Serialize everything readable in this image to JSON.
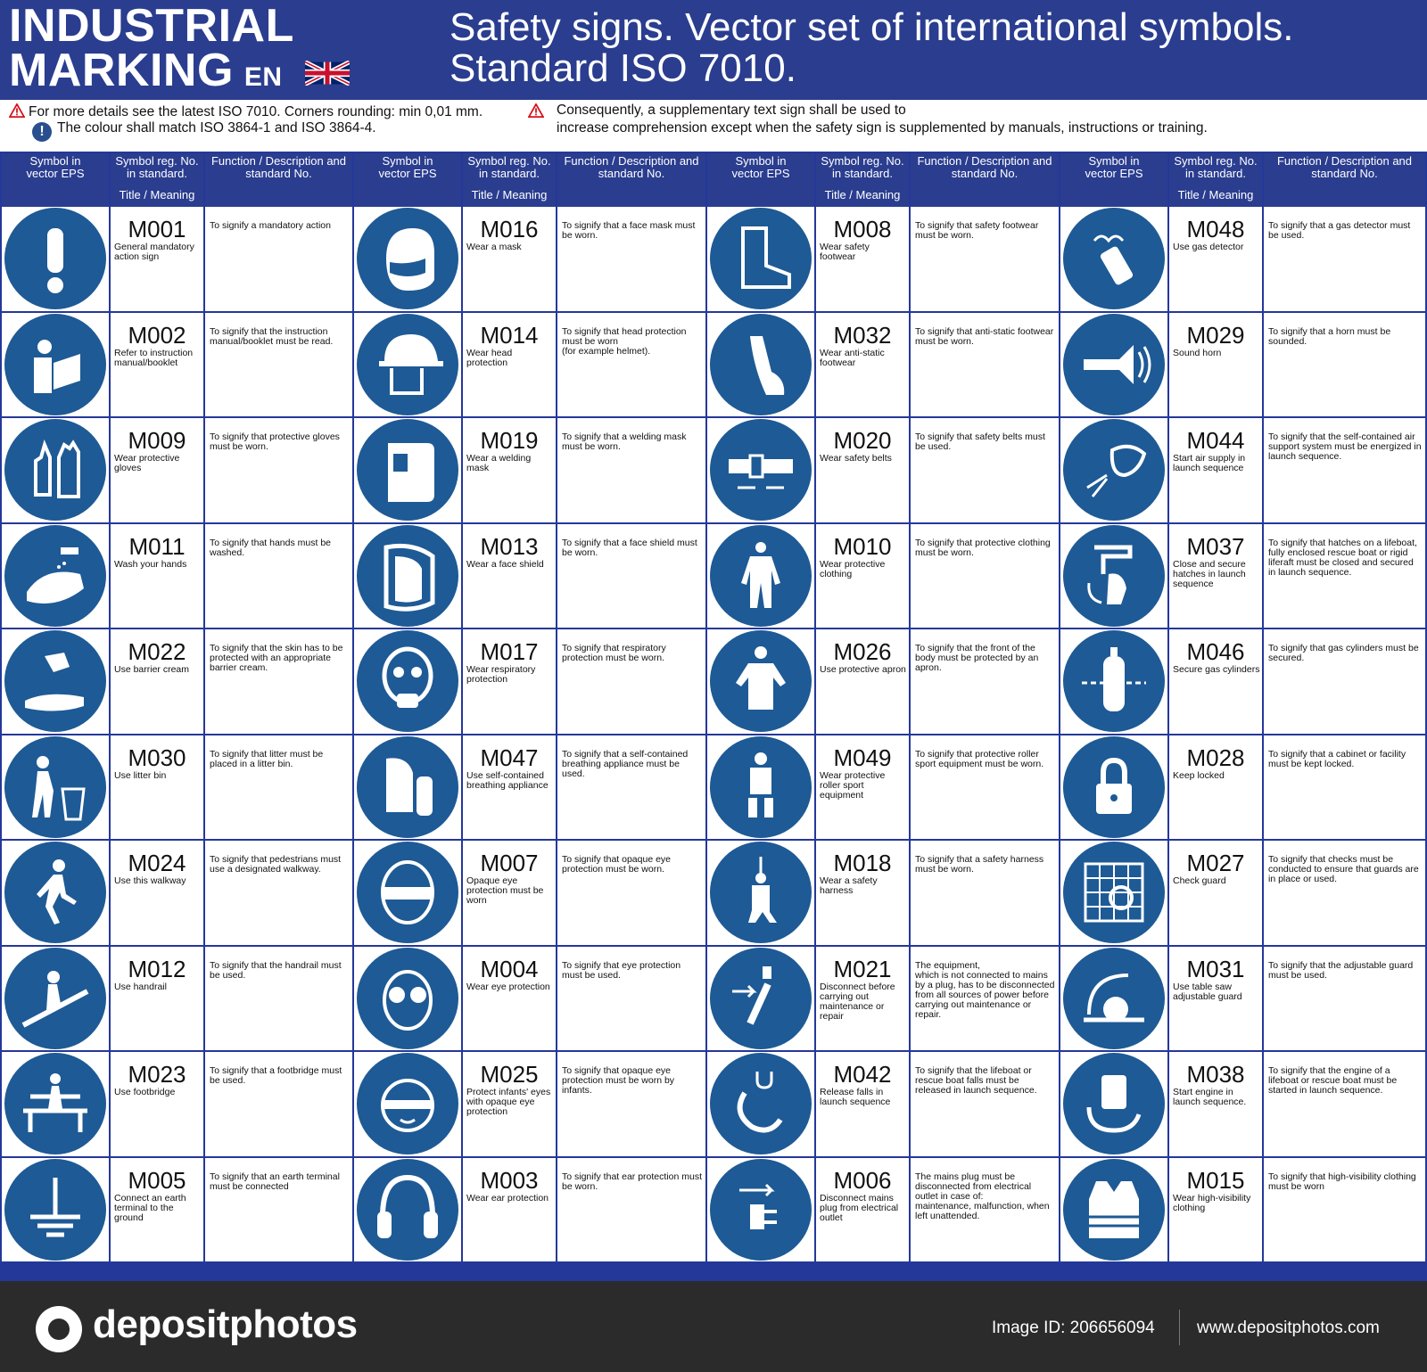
{
  "header": {
    "left_line1": "INDUSTRIAL",
    "left_line2": "MARKING",
    "lang": "EN",
    "right_line1": "Safety signs. Vector set of international symbols.",
    "right_line2": "Standard ISO 7010."
  },
  "notes": {
    "note1": "For more details see the latest ISO 7010.   Corners rounding: min 0,01 mm.",
    "note2": "The colour shall match ISO 3864-1 and ISO 3864-4.",
    "note3_line1": "Consequently, a supplementary text sign shall be used to",
    "note3_line2": "increase comprehension except when the safety sign is supplemented by manuals, instructions or training."
  },
  "columns": {
    "symbol": "Symbol in\nvector EPS",
    "regno": "Symbol reg. No.\nin standard.",
    "title": "Title / Meaning",
    "desc": "Function / Description and\nstandard No."
  },
  "colors": {
    "blue": "#1e5a95",
    "header_blue": "#2a3d8f"
  },
  "groups": [
    [
      {
        "code": "M001",
        "title": "General mandatory action sign",
        "desc": "To signify a mandatory action",
        "icon": "exclamation-icon"
      },
      {
        "code": "M002",
        "title": "Refer to instruction manual/booklet",
        "desc": "To signify that the instruction manual/booklet must be read.",
        "icon": "reading-person-icon"
      },
      {
        "code": "M009",
        "title": "Wear protective gloves",
        "desc": "To signify that protective gloves must be worn.",
        "icon": "gloves-icon"
      },
      {
        "code": "M011",
        "title": "Wash your hands",
        "desc": "To signify that hands must be washed.",
        "icon": "hand-wash-icon"
      },
      {
        "code": "M022",
        "title": "Use barrier cream",
        "desc": "To signify that the skin has to be protected with an appropriate barrier cream.",
        "icon": "barrier-cream-icon"
      },
      {
        "code": "M030",
        "title": "Use litter bin",
        "desc": "To signify that litter must be placed in a litter bin.",
        "icon": "litter-bin-icon"
      },
      {
        "code": "M024",
        "title": "Use this walkway",
        "desc": "To signify that pedestrians must use a designated walkway.",
        "icon": "walking-person-icon"
      },
      {
        "code": "M012",
        "title": "Use handrail",
        "desc": "To signify that the handrail must be used.",
        "icon": "handrail-icon"
      },
      {
        "code": "M023",
        "title": "Use footbridge",
        "desc": "To signify that a footbridge must be used.",
        "icon": "footbridge-icon"
      },
      {
        "code": "M005",
        "title": "Connect an earth terminal to the ground",
        "desc": "To signify that an earth terminal must be connected",
        "icon": "earth-terminal-icon"
      }
    ],
    [
      {
        "code": "M016",
        "title": "Wear a mask",
        "desc": "To signify that a face mask must be worn.",
        "icon": "face-mask-icon"
      },
      {
        "code": "M014",
        "title": "Wear head protection",
        "desc": "To signify that head protection must be worn\n(for example helmet).",
        "icon": "helmet-icon"
      },
      {
        "code": "M019",
        "title": "Wear a welding mask",
        "desc": "To signify that a welding mask must be worn.",
        "icon": "welding-mask-icon"
      },
      {
        "code": "M013",
        "title": "Wear a face shield",
        "desc": "To signify that a face shield must be worn.",
        "icon": "face-shield-icon"
      },
      {
        "code": "M017",
        "title": "Wear respiratory protection",
        "desc": "To signify that respiratory protection must be worn.",
        "icon": "respirator-icon"
      },
      {
        "code": "M047",
        "title": "Use self-contained breathing appliance",
        "desc": "To signify that a self-contained breathing appliance must be used.",
        "icon": "breathing-apparatus-icon"
      },
      {
        "code": "M007",
        "title": "Opaque eye protection must be worn",
        "desc": "To signify that opaque eye protection must be worn.",
        "icon": "opaque-goggles-icon"
      },
      {
        "code": "M004",
        "title": "Wear eye protection",
        "desc": "To signify that eye protection must be used.",
        "icon": "goggles-icon"
      },
      {
        "code": "M025",
        "title": "Protect infants' eyes with opaque eye protection",
        "desc": "To signify that opaque eye protection must be worn by infants.",
        "icon": "infant-goggles-icon"
      },
      {
        "code": "M003",
        "title": "Wear ear protection",
        "desc": "To signify that ear protection must be worn.",
        "icon": "ear-protection-icon"
      }
    ],
    [
      {
        "code": "M008",
        "title": "Wear safety footwear",
        "desc": "To signify that safety footwear must be worn.",
        "icon": "safety-boot-icon"
      },
      {
        "code": "M032",
        "title": "Wear anti-static footwear",
        "desc": "To signify that anti-static footwear must be worn.",
        "icon": "anti-static-shoe-icon"
      },
      {
        "code": "M020",
        "title": "Wear safety belts",
        "desc": "To signify that safety belts must be used.",
        "icon": "safety-belt-icon"
      },
      {
        "code": "M010",
        "title": "Wear protective clothing",
        "desc": "To signify that protective clothing must be worn.",
        "icon": "coverall-icon"
      },
      {
        "code": "M026",
        "title": "Use protective apron",
        "desc": "To signify that the front of the body must be protected by an apron.",
        "icon": "apron-icon"
      },
      {
        "code": "M049",
        "title": "Wear protective roller sport equipment",
        "desc": "To signify that protective roller sport equipment must be worn.",
        "icon": "roller-sport-icon"
      },
      {
        "code": "M018",
        "title": "Wear a safety harness",
        "desc": "To signify that a safety harness\n must be worn.",
        "icon": "harness-icon"
      },
      {
        "code": "M021",
        "title": "Disconnect before carrying out maintenance or repair",
        "desc": "The equipment,\nwhich is not connected to mains by a plug, has to be disconnected from all sources of power before carrying out maintenance or repair.",
        "icon": "disconnect-switch-icon"
      },
      {
        "code": "M042",
        "title": "Release falls in launch sequence",
        "desc": "To signify that the lifeboat or rescue boat falls must be released in launch sequence.",
        "icon": "release-hook-icon"
      },
      {
        "code": "M006",
        "title": "Disconnect mains plug from electrical outlet",
        "desc": "The mains plug must be disconnected from electrical outlet in case of:\nmaintenance, malfunction, when left unattended.",
        "icon": "unplug-icon"
      }
    ],
    [
      {
        "code": "M048",
        "title": "Use gas detector",
        "desc": "To signify that a gas detector must be used.",
        "icon": "gas-detector-icon"
      },
      {
        "code": "M029",
        "title": "Sound horn",
        "desc": "To signify that a horn must be sounded.",
        "icon": "horn-icon"
      },
      {
        "code": "M044",
        "title": "Start air supply in launch sequence",
        "desc": "To signify that the self-contained air support system must be energized in launch sequence.",
        "icon": "air-supply-icon"
      },
      {
        "code": "M037",
        "title": "Close and secure hatches in launch sequence",
        "desc": "To signify that hatches on a lifeboat, fully enclosed rescue boat or rigid liferaft must be closed and secured in launch sequence.",
        "icon": "hatch-icon"
      },
      {
        "code": "M046",
        "title": "Secure gas cylinders",
        "desc": "To signify that gas cylinders must be secured.",
        "icon": "gas-cylinder-icon"
      },
      {
        "code": "M028",
        "title": "Keep locked",
        "desc": "To signify that a cabinet or facility must be kept locked.",
        "icon": "padlock-icon"
      },
      {
        "code": "M027",
        "title": "Check guard",
        "desc": "To signify that checks must be conducted to ensure that guards  are in place or used.",
        "icon": "guard-icon"
      },
      {
        "code": "M031",
        "title": "Use table saw adjustable guard",
        "desc": "To signify that the adjustable guard must be used.",
        "icon": "table-saw-icon"
      },
      {
        "code": "M038",
        "title": "Start engine in launch sequence.",
        "desc": "To signify that the engine of a lifeboat or rescue boat must be started in launch sequence.",
        "icon": "engine-start-icon"
      },
      {
        "code": "M015",
        "title": "Wear high-visibility clothing",
        "desc": "To signify that high-visibility clothing must be worn",
        "icon": "hi-vis-vest-icon"
      }
    ]
  ],
  "footer": {
    "brand": "depositphotos",
    "image_id": "Image ID: 206656094",
    "url": "www.depositphotos.com"
  }
}
